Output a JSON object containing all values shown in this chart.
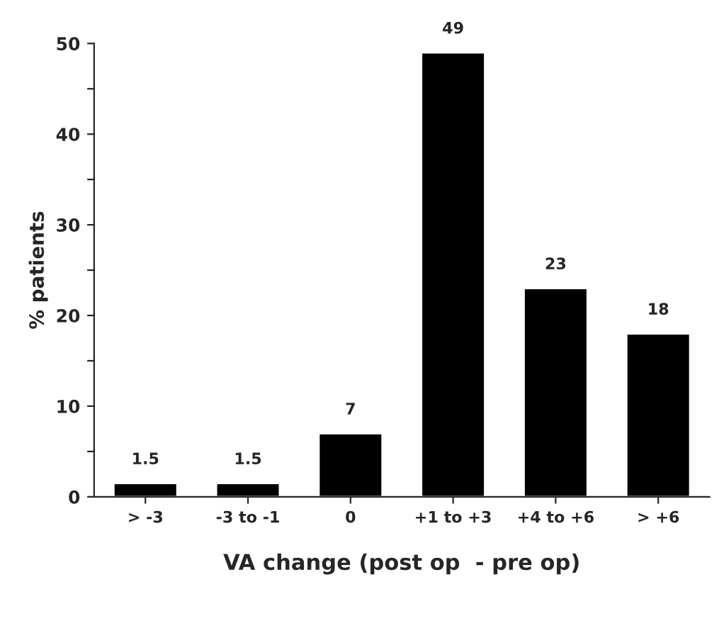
{
  "chart_data": {
    "type": "bar",
    "xlabel": "VA change (post op  - pre op)",
    "ylabel": "% patients",
    "categories": [
      "> -3",
      "-3 to -1",
      "0",
      "+1 to +3",
      "+4 to +6",
      "> +6"
    ],
    "values": [
      1.5,
      1.5,
      7,
      49,
      23,
      18
    ],
    "color": "#000000",
    "ylim": [
      0,
      50
    ],
    "yticks": [
      0,
      {
        "value": 5,
        "label": null
      },
      10,
      {
        "value": 15,
        "label": null
      },
      20,
      {
        "value": 25,
        "label": null
      },
      30,
      {
        "value": 35,
        "label": null
      },
      40,
      {
        "value": 45,
        "label": null
      },
      50
    ],
    "data_labels": true,
    "grid": false,
    "legend": false
  }
}
